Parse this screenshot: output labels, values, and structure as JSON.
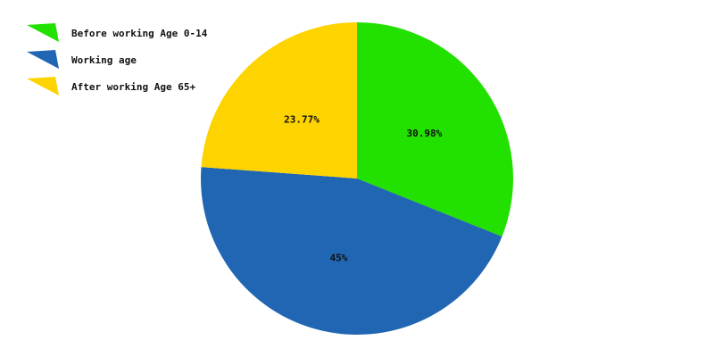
{
  "chart_data": {
    "type": "pie",
    "series": [
      {
        "name": "Before working Age 0-14",
        "value": 30.98,
        "label": "30.98%",
        "color": "#22e000"
      },
      {
        "name": "Working age",
        "value": 45,
        "label": "45%",
        "color": "#2066b3"
      },
      {
        "name": "After working Age 65+",
        "value": 23.77,
        "label": "23.77%",
        "color": "#fdd300"
      }
    ],
    "start_angle_deg": 0,
    "direction": "clockwise",
    "legend_position": "top-left"
  }
}
